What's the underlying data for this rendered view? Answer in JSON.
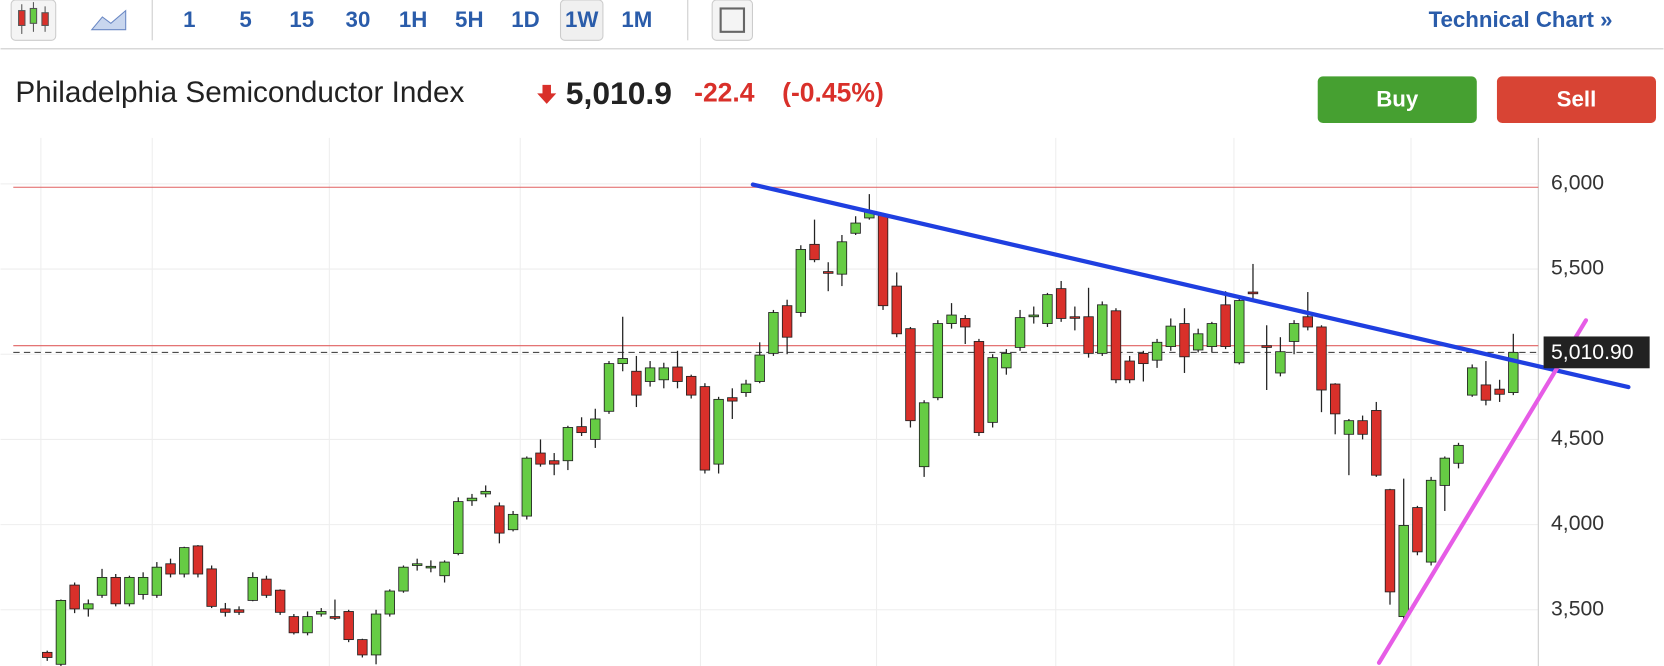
{
  "toolbar": {
    "intervals": [
      "1",
      "5",
      "15",
      "30",
      "1H",
      "5H",
      "1D",
      "1W",
      "1M"
    ],
    "selected": "1W",
    "link": "Technical Chart »"
  },
  "header": {
    "title": "Philadelphia Semiconductor Index",
    "price": "5,010.9",
    "change": "-22.4",
    "change_pct": "(-0.45%)"
  },
  "buttons": {
    "buy": "Buy",
    "sell": "Sell"
  },
  "chart_data": {
    "type": "candlestick",
    "up_color": "#66cc44",
    "down_color": "#d9302a",
    "ylim": [
      3170,
      6270
    ],
    "yticks": [
      {
        "value": 3500,
        "label": "3,500"
      },
      {
        "value": 4000,
        "label": "4,000"
      },
      {
        "value": 4500,
        "label": "4,500"
      },
      {
        "value": 5000,
        "label": "5,000"
      },
      {
        "value": 5500,
        "label": "5,500"
      },
      {
        "value": 6000,
        "label": "6,000"
      }
    ],
    "last": {
      "value": 5010.9,
      "label": "5,010.90"
    },
    "horizontal_lines": {
      "color": "#e06060",
      "values": [
        5980,
        5050
      ]
    },
    "trendlines": [
      {
        "color": "#1f3fe0",
        "points": [
          [
            51.5,
            5996
          ],
          [
            115.4,
            4807
          ]
        ]
      },
      {
        "color": "#e65ce6",
        "points": [
          [
            97.2,
            3189
          ],
          [
            112.3,
            5199
          ]
        ]
      }
    ],
    "open": [
      3250,
      3180,
      3645,
      3505,
      3585,
      3690,
      3535,
      3590,
      3585,
      3770,
      3710,
      3875,
      3740,
      3505,
      3500,
      3555,
      3680,
      3615,
      3460,
      3365,
      3475,
      3460,
      3490,
      3325,
      3235,
      3475,
      3610,
      3760,
      3750,
      3700,
      3830,
      4140,
      4180,
      4110,
      3970,
      4050,
      4420,
      4375,
      4375,
      4575,
      4500,
      4665,
      4945,
      4900,
      4840,
      4850,
      4925,
      4870,
      4810,
      4355,
      4745,
      4775,
      4840,
      5005,
      5285,
      5245,
      5645,
      5485,
      5470,
      5710,
      5800,
      5815,
      5400,
      5150,
      4340,
      4745,
      5180,
      5210,
      5075,
      4600,
      4920,
      5040,
      5220,
      5180,
      5385,
      5220,
      5220,
      5005,
      5255,
      4960,
      5005,
      4965,
      5045,
      5180,
      5025,
      5045,
      5290,
      4950,
      5365,
      5050,
      4890,
      5075,
      5220,
      5160,
      4825,
      4530,
      4610,
      4670,
      4205,
      3460,
      4100,
      3780,
      4230,
      4360,
      4760,
      4820,
      4795,
      4775
    ],
    "high": [
      3260,
      3560,
      3660,
      3560,
      3740,
      3710,
      3700,
      3720,
      3780,
      3800,
      3870,
      3880,
      3760,
      3540,
      3520,
      3720,
      3700,
      3620,
      3475,
      3490,
      3510,
      3560,
      3500,
      3330,
      3500,
      3620,
      3760,
      3800,
      3790,
      3790,
      4160,
      4180,
      4230,
      4130,
      4080,
      4400,
      4500,
      4420,
      4580,
      4630,
      4680,
      4960,
      5220,
      4990,
      4960,
      4950,
      5020,
      4880,
      4830,
      4750,
      4800,
      4850,
      5070,
      5260,
      5320,
      5640,
      5790,
      5540,
      5700,
      5810,
      5940,
      5830,
      5480,
      5160,
      4730,
      5200,
      5300,
      5230,
      5090,
      5000,
      5030,
      5260,
      5280,
      5360,
      5430,
      5280,
      5390,
      5310,
      5270,
      4990,
      5020,
      5090,
      5210,
      5270,
      5150,
      5190,
      5370,
      5330,
      5530,
      5170,
      5100,
      5200,
      5365,
      5170,
      4830,
      4620,
      4640,
      4720,
      4210,
      4270,
      4110,
      4280,
      4400,
      4480,
      4940,
      4960,
      4850,
      5120
    ],
    "low": [
      3200,
      3170,
      3480,
      3460,
      3570,
      3520,
      3520,
      3560,
      3570,
      3690,
      3690,
      3690,
      3510,
      3460,
      3470,
      3550,
      3570,
      3470,
      3355,
      3350,
      3460,
      3440,
      3310,
      3220,
      3180,
      3460,
      3600,
      3730,
      3720,
      3660,
      3820,
      4110,
      4160,
      3890,
      3960,
      4030,
      4340,
      4290,
      4320,
      4520,
      4450,
      4650,
      4900,
      4690,
      4810,
      4800,
      4800,
      4740,
      4300,
      4300,
      4620,
      4750,
      4830,
      4990,
      5000,
      5220,
      5540,
      5370,
      5400,
      5700,
      5790,
      5260,
      5100,
      4570,
      4280,
      4730,
      5150,
      5060,
      4520,
      4570,
      4880,
      5020,
      5180,
      5160,
      5190,
      5140,
      4980,
      4990,
      4830,
      4830,
      4840,
      4920,
      5020,
      4890,
      5010,
      5010,
      5030,
      4940,
      5320,
      4790,
      4870,
      5000,
      5140,
      4660,
      4530,
      4290,
      4500,
      4280,
      3530,
      3440,
      3820,
      3760,
      4080,
      4330,
      4750,
      4700,
      4720,
      4760
    ],
    "close": [
      3220,
      3555,
      3505,
      3535,
      3690,
      3535,
      3690,
      3690,
      3750,
      3710,
      3865,
      3710,
      3520,
      3485,
      3485,
      3690,
      3585,
      3485,
      3365,
      3460,
      3490,
      3450,
      3325,
      3235,
      3475,
      3610,
      3750,
      3770,
      3755,
      3780,
      4135,
      4155,
      4195,
      3950,
      4060,
      4390,
      4355,
      4355,
      4570,
      4540,
      4620,
      4945,
      4975,
      4760,
      4920,
      4920,
      4840,
      4760,
      4320,
      4735,
      4725,
      4825,
      4995,
      5245,
      5100,
      5615,
      5555,
      5475,
      5660,
      5770,
      5835,
      5285,
      5120,
      4610,
      4715,
      5180,
      5230,
      5160,
      4540,
      4980,
      5005,
      5215,
      5230,
      5350,
      5210,
      5215,
      5005,
      5290,
      4850,
      4850,
      4945,
      5070,
      5165,
      4985,
      5120,
      5180,
      5045,
      5315,
      5355,
      5040,
      5015,
      5180,
      5160,
      4790,
      4650,
      4610,
      4530,
      4290,
      3605,
      3995,
      3840,
      4260,
      4390,
      4465,
      4920,
      4730,
      4765,
      5010.9
    ]
  }
}
